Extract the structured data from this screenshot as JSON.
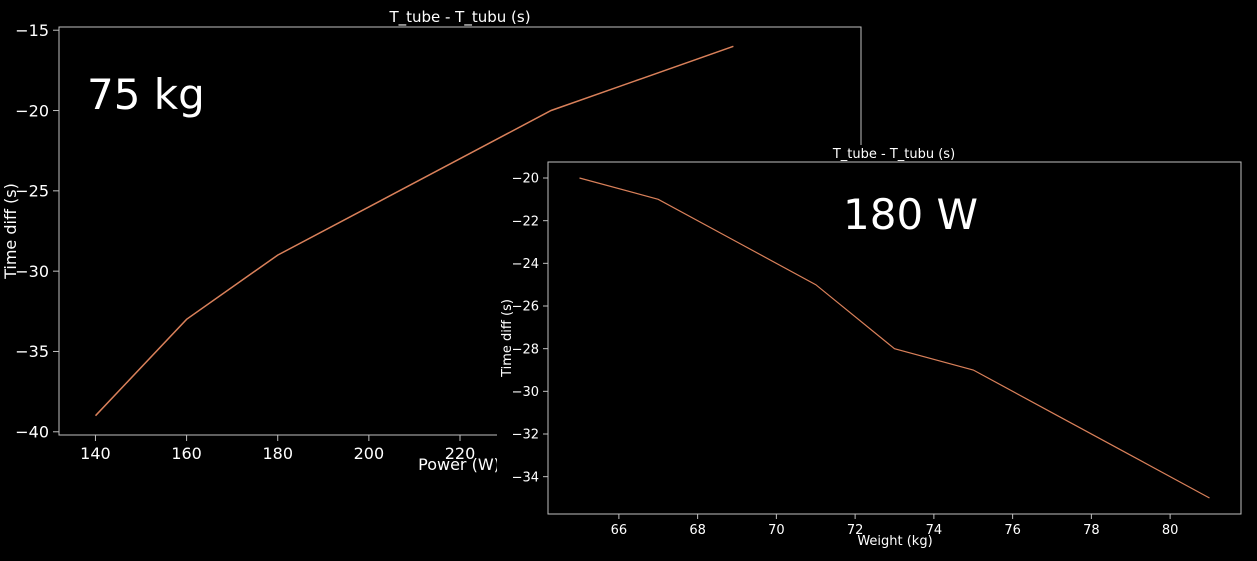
{
  "colors": {
    "background": "#000000",
    "line": "#d9805a",
    "axes": "#bfbfbf",
    "text": "#ffffff"
  },
  "chart_data": [
    {
      "type": "line",
      "title": "T_tube - T_tubu (s)",
      "annotation": "75 kg",
      "xlabel": "Power (W)",
      "ylabel": "Time diff (s)",
      "x": [
        140,
        160,
        180,
        200,
        220,
        240,
        260,
        280
      ],
      "series": [
        {
          "values": [
            -39,
            -33,
            -29,
            -26,
            -23,
            -20,
            -18,
            -16
          ]
        }
      ],
      "xlim": [
        132,
        308
      ],
      "ylim": [
        -40.2,
        -14.8
      ],
      "xticks": [
        140,
        160,
        180,
        200,
        220
      ],
      "xtick_labels": [
        "140",
        "160",
        "180",
        "200",
        "220"
      ],
      "yticks": [
        -15,
        -20,
        -25,
        -30,
        -35,
        -40
      ],
      "ytick_labels": [
        "−15",
        "−20",
        "−25",
        "−30",
        "−35",
        "−40"
      ],
      "grid": false
    },
    {
      "type": "line",
      "title": "T_tube - T_tubu (s)",
      "annotation": "180 W",
      "xlabel": "Weight (kg)",
      "ylabel": "Time diff (s)",
      "x": [
        65,
        67,
        69,
        71,
        73,
        75,
        77,
        79,
        81
      ],
      "series": [
        {
          "values": [
            -20,
            -21,
            -23,
            -25,
            -28,
            -29,
            -31,
            -33,
            -35
          ]
        }
      ],
      "xlim": [
        64.2,
        81.8
      ],
      "ylim": [
        -35.75,
        -19.25
      ],
      "xticks": [
        66,
        68,
        70,
        72,
        74,
        76,
        78,
        80
      ],
      "xtick_labels": [
        "66",
        "68",
        "70",
        "72",
        "74",
        "76",
        "78",
        "80"
      ],
      "yticks": [
        -20,
        -22,
        -24,
        -26,
        -28,
        -30,
        -32,
        -34
      ],
      "ytick_labels": [
        "−20",
        "−22",
        "−24",
        "−26",
        "−28",
        "−30",
        "−32",
        "−34"
      ],
      "grid": false
    }
  ]
}
